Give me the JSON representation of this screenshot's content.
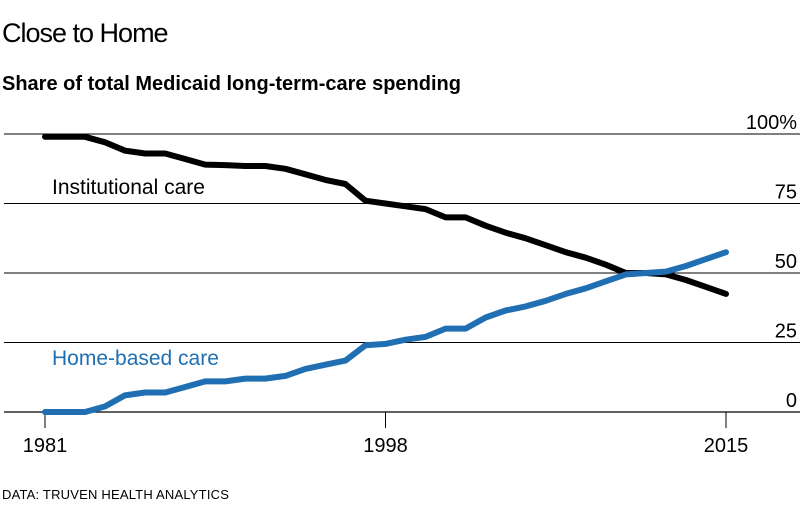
{
  "header": {
    "title": "Close to Home",
    "subtitle": "Share of total Medicaid long-term-care spending"
  },
  "footer": {
    "source": "DATA: TRUVEN HEALTH ANALYTICS"
  },
  "chart_data": {
    "type": "line",
    "title": "Close to Home",
    "subtitle": "Share of total Medicaid long-term-care spending",
    "xlabel": "",
    "ylabel": "",
    "xlim": [
      1981,
      2015
    ],
    "ylim": [
      0,
      100
    ],
    "yticks": [
      0,
      25,
      50,
      75,
      100
    ],
    "ytick_labels": [
      "0",
      "25",
      "50",
      "75",
      "100%"
    ],
    "xticks": [
      1981,
      1998,
      2015
    ],
    "xtick_labels": [
      "1981",
      "1998",
      "2015"
    ],
    "grid": true,
    "legend": "inline labels",
    "x": [
      1981,
      1982,
      1983,
      1984,
      1985,
      1986,
      1987,
      1988,
      1989,
      1990,
      1991,
      1992,
      1993,
      1994,
      1995,
      1996,
      1997,
      1998,
      1999,
      2000,
      2001,
      2002,
      2003,
      2004,
      2005,
      2006,
      2007,
      2008,
      2009,
      2010,
      2011,
      2012,
      2013,
      2014,
      2015
    ],
    "series": [
      {
        "name": "Institutional care",
        "color": "#000000",
        "values": [
          99,
          99,
          99,
          97,
          94,
          93,
          93,
          91,
          89,
          88.8,
          88.5,
          88.5,
          87.5,
          85.5,
          83.5,
          82,
          76,
          75,
          74,
          73,
          70,
          70,
          67,
          64.5,
          62.5,
          60,
          57.5,
          55.5,
          53,
          50,
          50,
          49.5,
          47.5,
          45,
          42.5
        ]
      },
      {
        "name": "Home-based care",
        "color": "#1f6fb2",
        "values": [
          0,
          0,
          0,
          2,
          6,
          7,
          7,
          9,
          11,
          11,
          12,
          12,
          13,
          15.5,
          17,
          18.5,
          24,
          24.5,
          26,
          27,
          30,
          30,
          34,
          36.5,
          38,
          40,
          42.5,
          44.5,
          47,
          49.5,
          50,
          50.5,
          52.5,
          55,
          57.5
        ]
      }
    ],
    "series_labels": [
      {
        "text": "Institutional care",
        "color": "#000000"
      },
      {
        "text": "Home-based care",
        "color": "#1f6fb2"
      }
    ]
  }
}
